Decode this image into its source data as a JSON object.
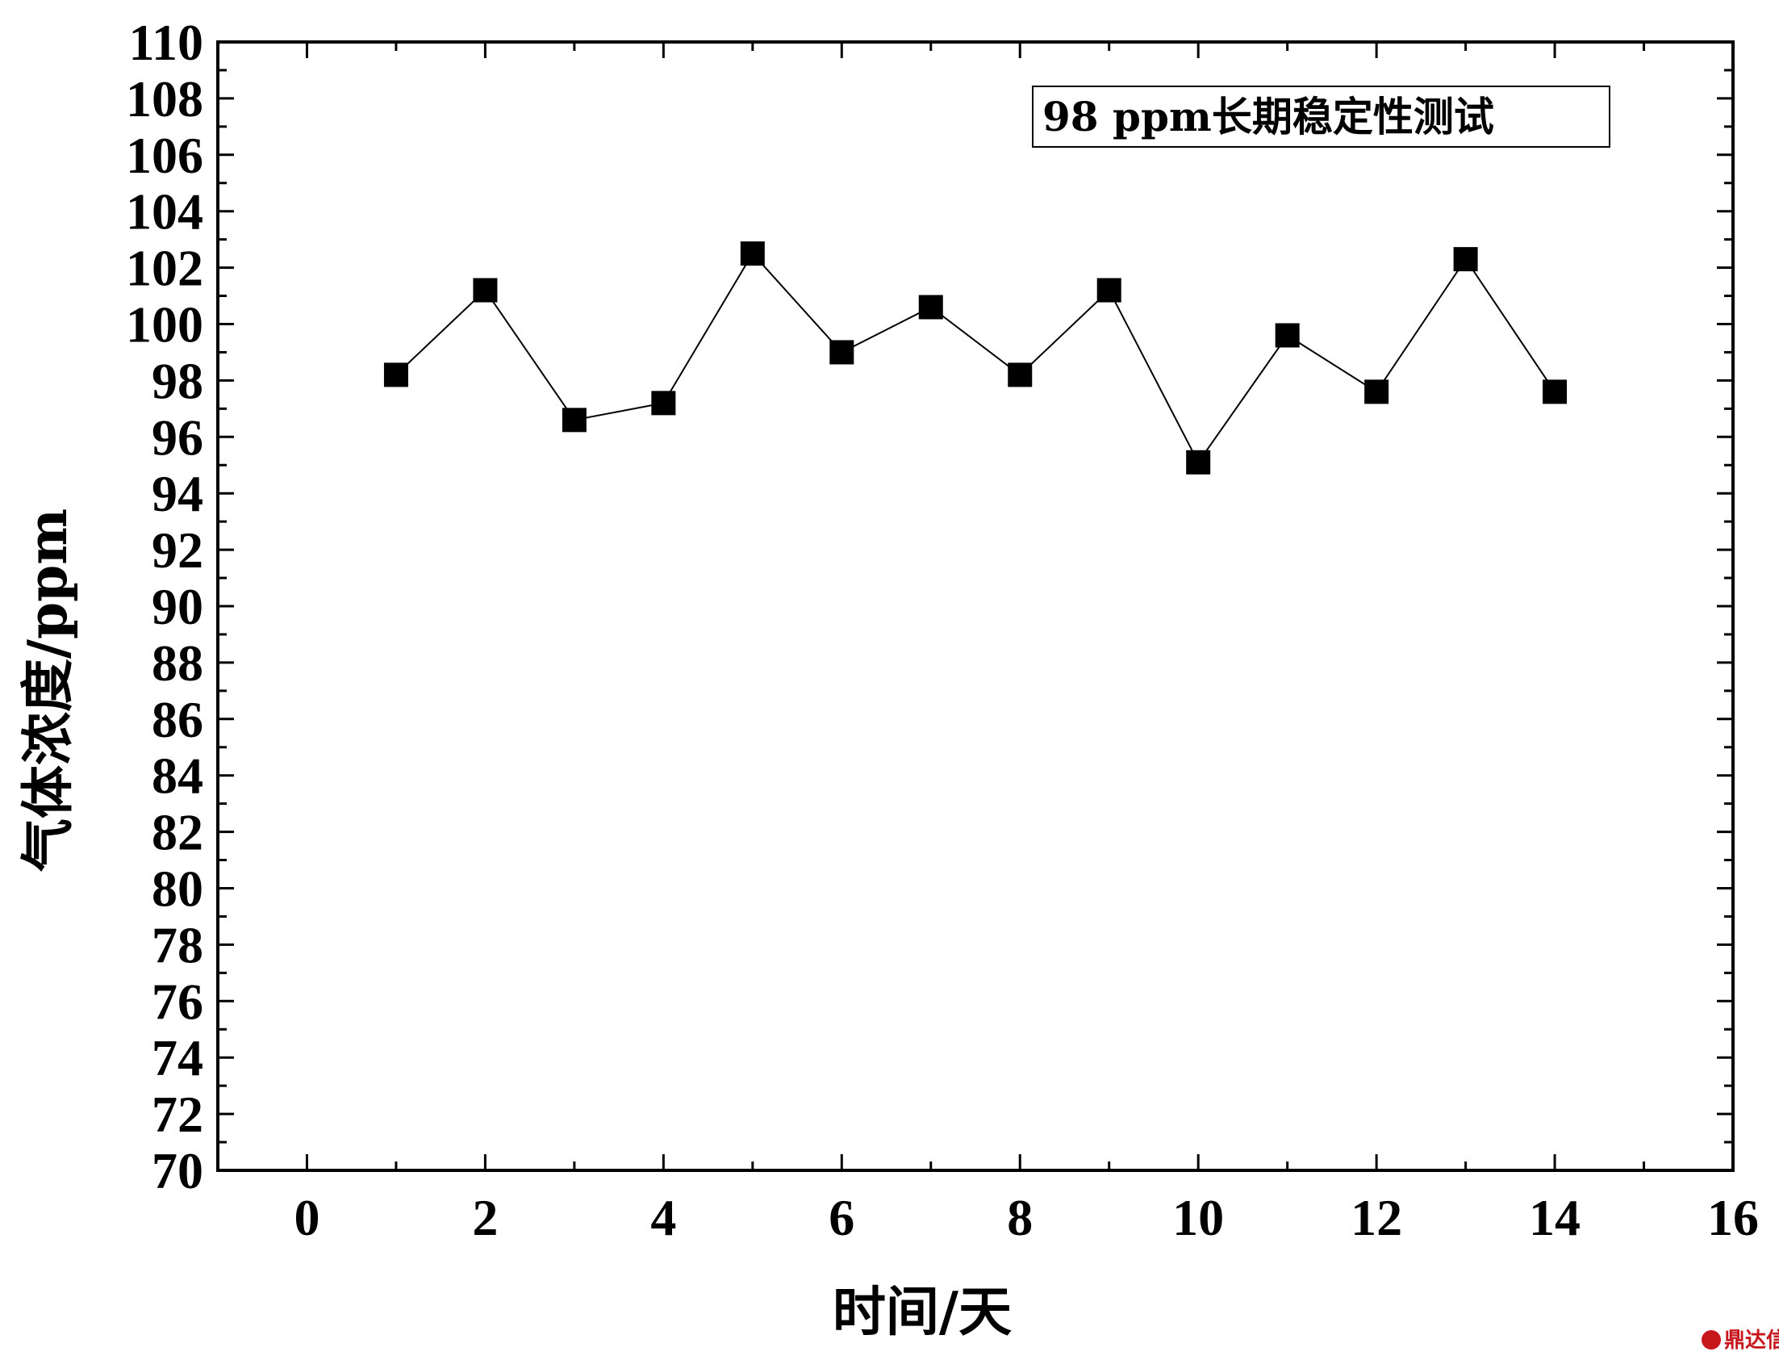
{
  "chart_data": {
    "type": "line",
    "legend_label": "98 ppm长期稳定性测试",
    "legend_position": "top-right",
    "xlabel": "时间/天",
    "ylabel": "气体浓度/ppm",
    "xlim": [
      -1,
      16
    ],
    "ylim": [
      70,
      110
    ],
    "x_ticks": [
      0,
      2,
      4,
      6,
      8,
      10,
      12,
      14,
      16
    ],
    "y_ticks": [
      70,
      72,
      74,
      76,
      78,
      80,
      82,
      84,
      86,
      88,
      90,
      92,
      94,
      96,
      98,
      100,
      102,
      104,
      106,
      108,
      110
    ],
    "grid": false,
    "marker": "filled-square",
    "series": [
      {
        "x": [
          1,
          2,
          3,
          4,
          5,
          6,
          7,
          8,
          9,
          10,
          11,
          12,
          13,
          14
        ],
        "values": [
          98.2,
          101.2,
          96.6,
          97.2,
          102.5,
          99.0,
          100.6,
          98.2,
          101.2,
          95.1,
          99.6,
          97.6,
          102.3,
          97.6
        ]
      }
    ]
  },
  "watermark": {
    "text": "鼎达信",
    "color": "#c8161d"
  }
}
